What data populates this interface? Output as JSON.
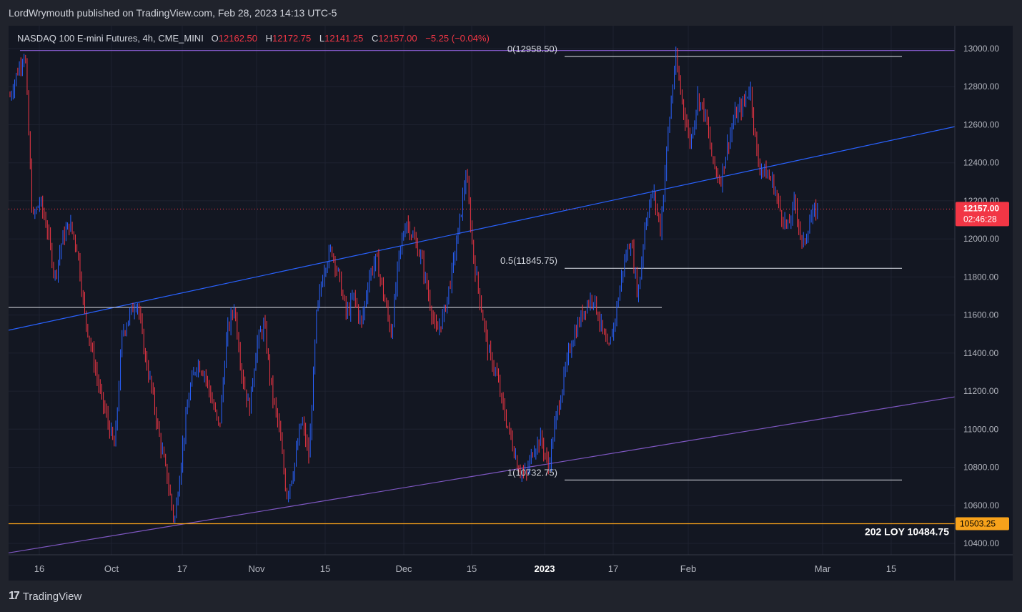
{
  "header": {
    "published_text": "LordWrymouth published on TradingView.com, Feb 28, 2023 14:13 UTC-5"
  },
  "legend": {
    "symbol": "NASDAQ 100 E-mini Futures, 4h, CME_MINI",
    "o_label": "O",
    "o_value": "12162.50",
    "h_label": "H",
    "h_value": "12172.75",
    "l_label": "L",
    "l_value": "12141.25",
    "c_label": "C",
    "c_value": "12157.00",
    "change": "−5.25 (−0.04%)"
  },
  "footer": {
    "logo_text": "TradingView"
  },
  "colors": {
    "background": "#131722",
    "up": "#2962ff",
    "down": "#f23645",
    "channel_upper": "#2962ff",
    "channel_lower": "#7e57c2",
    "support": "#f7a21b"
  },
  "chart_data": {
    "type": "candlestick",
    "title": "NASDAQ 100 E-mini Futures, 4h, CME_MINI",
    "y_range": [
      10350,
      13150
    ],
    "y_ticks": [
      "13000.00",
      "12800.00",
      "12600.00",
      "12400.00",
      "12200.00",
      "12000.00",
      "11800.00",
      "11600.00",
      "11400.00",
      "11200.00",
      "11000.00",
      "10800.00",
      "10600.00",
      "10400.00"
    ],
    "y_tick_values": [
      13000,
      12800,
      12600,
      12400,
      12200,
      12000,
      11800,
      11600,
      11400,
      11200,
      11000,
      10800,
      10600,
      10400
    ],
    "x_ticks": [
      {
        "label": "16",
        "bold": false
      },
      {
        "label": "Oct",
        "bold": false
      },
      {
        "label": "17",
        "bold": false
      },
      {
        "label": "Nov",
        "bold": false
      },
      {
        "label": "15",
        "bold": false
      },
      {
        "label": "Dec",
        "bold": false
      },
      {
        "label": "15",
        "bold": false
      },
      {
        "label": "2023",
        "bold": true
      },
      {
        "label": "17",
        "bold": false
      },
      {
        "label": "Feb",
        "bold": false
      },
      {
        "label": "Mar",
        "bold": false
      },
      {
        "label": "15",
        "bold": false
      }
    ],
    "price_path": [
      12750,
      12880,
      12990,
      12100,
      12200,
      12050,
      11800,
      12000,
      12080,
      11950,
      11600,
      11400,
      11200,
      11050,
      10900,
      11500,
      11600,
      11680,
      11400,
      11200,
      10950,
      10750,
      10510,
      10880,
      11200,
      11350,
      11300,
      11150,
      11000,
      11500,
      11650,
      11300,
      11100,
      11450,
      11550,
      11200,
      11000,
      10650,
      10800,
      11050,
      10850,
      11600,
      11850,
      11950,
      11800,
      11600,
      11700,
      11550,
      11800,
      11900,
      11700,
      11500,
      11900,
      12100,
      12000,
      11900,
      11700,
      11500,
      11600,
      11800,
      12050,
      12350,
      11900,
      11650,
      11400,
      11300,
      11100,
      10950,
      10800,
      10750,
      10900,
      10950,
      10800,
      11050,
      11250,
      11450,
      11550,
      11650,
      11700,
      11550,
      11400,
      11600,
      11850,
      12000,
      11700,
      12100,
      12250,
      12050,
      12550,
      12950,
      12700,
      12500,
      12750,
      12650,
      12400,
      12300,
      12500,
      12650,
      12700,
      12800,
      12400,
      12350,
      12300,
      12150,
      12050,
      12200,
      11950,
      12100,
      12157
    ],
    "last_price": "12157.00",
    "countdown": "02:46:28",
    "support_price": "10503.25",
    "support_note": "202 LOY 10484.75",
    "fib_levels": [
      {
        "ratio": "0",
        "price": 12958.5,
        "label": "0(12958.50)"
      },
      {
        "ratio": "0.5",
        "price": 11845.75,
        "label": "0.5(11845.75)"
      },
      {
        "ratio": "1",
        "price": 10732.75,
        "label": "1(10732.75)"
      }
    ],
    "horizontal_levels": [
      12990,
      11640
    ],
    "channel_upper_points": [
      [
        0,
        11520
      ],
      [
        1,
        12590
      ]
    ],
    "channel_lower_points": [
      [
        0,
        10350
      ],
      [
        1,
        11170
      ]
    ]
  }
}
